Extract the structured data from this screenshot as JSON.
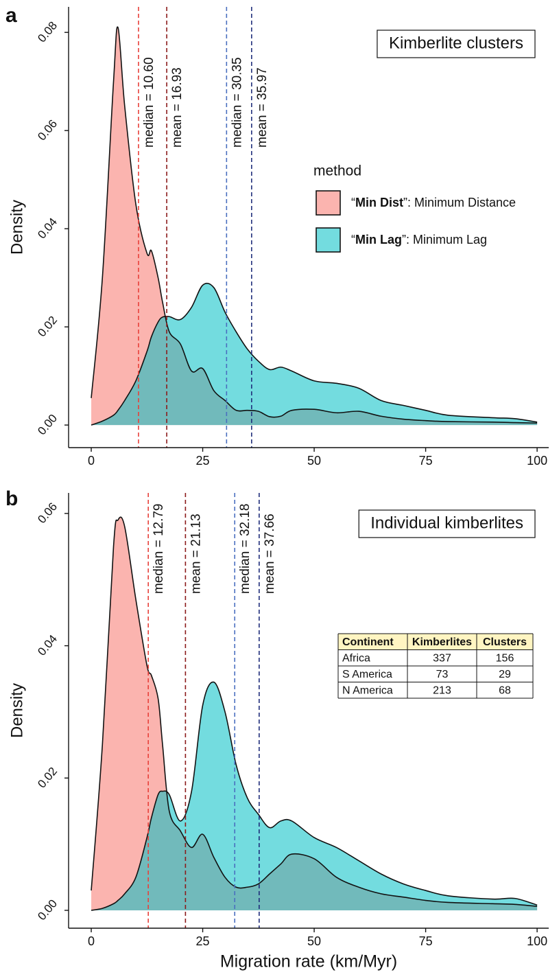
{
  "chart_data": [
    {
      "type": "area",
      "panel_label": "a",
      "title": "Kimberlite clusters",
      "ylabel": "Density",
      "x": [
        0,
        2.5,
        5,
        6,
        7.5,
        10,
        12.5,
        13.5,
        15,
        16,
        17.5,
        20,
        22.5,
        25,
        27.5,
        30,
        32.5,
        35,
        37.5,
        40,
        42.5,
        45,
        50,
        55,
        60,
        65,
        70,
        75,
        80,
        90,
        95,
        100
      ],
      "series": [
        {
          "name": "“Min Dist”: Minimum Distance",
          "color": "#F8766D",
          "values": [
            0.0055,
            0.03,
            0.07,
            0.081,
            0.065,
            0.045,
            0.035,
            0.0355,
            0.03,
            0.025,
            0.019,
            0.0165,
            0.011,
            0.0115,
            0.007,
            0.005,
            0.003,
            0.003,
            0.0028,
            0.0017,
            0.0018,
            0.003,
            0.0032,
            0.0025,
            0.0028,
            0.0018,
            0.0012,
            0.0009,
            0.0007,
            0.0006,
            0.0005,
            0.0004
          ]
        },
        {
          "name": "“Min Lag”: Minimum Lag",
          "color": "#00BFC4",
          "values": [
            0,
            0.0008,
            0.002,
            0.003,
            0.005,
            0.009,
            0.015,
            0.018,
            0.021,
            0.022,
            0.0221,
            0.0215,
            0.024,
            0.0285,
            0.028,
            0.023,
            0.019,
            0.0155,
            0.013,
            0.0113,
            0.0118,
            0.011,
            0.009,
            0.0085,
            0.0075,
            0.005,
            0.004,
            0.003,
            0.002,
            0.0015,
            0.0013,
            0.0006
          ]
        }
      ],
      "opacity": 0.55,
      "vlines": [
        {
          "x": 10.6,
          "label": "median = 10.60",
          "color": "#e8403a"
        },
        {
          "x": 16.93,
          "label": "mean = 16.93",
          "color": "#8b1a1a"
        },
        {
          "x": 30.35,
          "label": "median = 30.35",
          "color": "#4a6fbf"
        },
        {
          "x": 35.97,
          "label": "mean = 35.97",
          "color": "#1f2d7a"
        }
      ],
      "legend": {
        "title": "method"
      },
      "xlim": [
        -5.08,
        102.6
      ],
      "xticks": [
        0,
        25,
        50,
        75,
        100
      ],
      "ylim": [
        -0.0046,
        0.0852
      ],
      "yticks": [
        {
          "value": 0,
          "label": "0.00"
        },
        0.02,
        0.04,
        0.06,
        0.08
      ]
    },
    {
      "type": "area",
      "panel_label": "b",
      "title": "Individual kimberlites",
      "ylabel": "Density",
      "xlabel": "Migration rate (km/Myr)",
      "x": [
        0,
        2.5,
        5,
        6,
        7.5,
        10,
        12.5,
        13.5,
        15,
        16,
        17.5,
        20,
        22.5,
        25,
        27.5,
        30,
        32.5,
        35,
        37.5,
        40,
        42.5,
        45,
        50,
        55,
        60,
        65,
        70,
        75,
        80,
        90,
        95,
        100
      ],
      "series": [
        {
          "color": "#F8766D",
          "values": [
            0.003,
            0.025,
            0.055,
            0.059,
            0.058,
            0.047,
            0.037,
            0.0355,
            0.032,
            0.025,
            0.015,
            0.012,
            0.0095,
            0.0115,
            0.008,
            0.005,
            0.0035,
            0.0035,
            0.004,
            0.0055,
            0.007,
            0.0085,
            0.0078,
            0.005,
            0.0035,
            0.0025,
            0.002,
            0.0015,
            0.0012,
            0.001,
            0.0009,
            0.0006
          ]
        },
        {
          "color": "#00BFC4",
          "values": [
            0,
            0.0003,
            0.001,
            0.0015,
            0.0025,
            0.005,
            0.011,
            0.014,
            0.0175,
            0.018,
            0.0175,
            0.0135,
            0.018,
            0.031,
            0.0345,
            0.03,
            0.022,
            0.017,
            0.0145,
            0.0125,
            0.0135,
            0.0135,
            0.011,
            0.0095,
            0.0075,
            0.0055,
            0.004,
            0.003,
            0.0022,
            0.0017,
            0.0018,
            0.0008
          ]
        }
      ],
      "opacity": 0.55,
      "vlines": [
        {
          "x": 12.79,
          "label": "median = 12.79",
          "color": "#e8403a"
        },
        {
          "x": 21.13,
          "label": "mean = 21.13",
          "color": "#8b1a1a"
        },
        {
          "x": 32.18,
          "label": "median = 32.18",
          "color": "#4a6fbf"
        },
        {
          "x": 37.66,
          "label": "mean = 37.66",
          "color": "#1f2d7a"
        }
      ],
      "table": {
        "columns": [
          "Continent",
          "Kimberlites",
          "Clusters"
        ],
        "rows": [
          [
            "Africa",
            337,
            156
          ],
          [
            "S America",
            73,
            29
          ],
          [
            "N America",
            213,
            68
          ]
        ]
      },
      "xlim": [
        -5.08,
        102.6
      ],
      "xticks": [
        0,
        25,
        50,
        75,
        100
      ],
      "ylim": [
        -0.0027,
        0.0631
      ],
      "yticks": [
        {
          "value": 0,
          "label": "0.00"
        },
        0.02,
        0.04,
        0.06
      ]
    }
  ]
}
